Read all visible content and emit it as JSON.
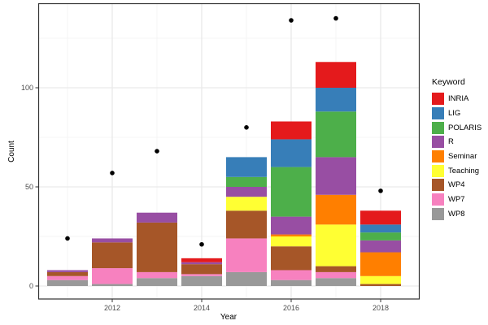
{
  "chart_data": {
    "type": "bar",
    "stacked": true,
    "title": "",
    "xlabel": "Year",
    "ylabel": "Count",
    "legend_title": "Keyword",
    "legend_position": "right",
    "grid": true,
    "theme": "bw",
    "x": [
      2011,
      2012,
      2013,
      2014,
      2015,
      2016,
      2017,
      2018
    ],
    "series": [
      {
        "name": "INRIA",
        "color": "#E41A1C",
        "values": [
          0,
          0,
          0,
          2,
          0,
          9,
          13,
          7
        ]
      },
      {
        "name": "LIG",
        "color": "#377EB8",
        "values": [
          0,
          0,
          0,
          0,
          10,
          14,
          12,
          4
        ]
      },
      {
        "name": "POLARIS",
        "color": "#4DAF4A",
        "values": [
          0,
          0,
          0,
          0,
          5,
          25,
          23,
          4
        ]
      },
      {
        "name": "R",
        "color": "#984EA3",
        "values": [
          1,
          2,
          5,
          1,
          5,
          9,
          19,
          6
        ]
      },
      {
        "name": "Seminar",
        "color": "#FF7F00",
        "values": [
          0,
          0,
          0,
          0,
          0,
          1,
          15,
          12
        ]
      },
      {
        "name": "Teaching",
        "color": "#FFFF33",
        "values": [
          0,
          0,
          0,
          0,
          7,
          5,
          21,
          4
        ]
      },
      {
        "name": "WP4",
        "color": "#A65628",
        "values": [
          2,
          13,
          25,
          5,
          14,
          12,
          3,
          1
        ]
      },
      {
        "name": "WP7",
        "color": "#F781BF",
        "values": [
          2,
          8,
          3,
          1,
          17,
          5,
          3,
          0
        ]
      },
      {
        "name": "WP8",
        "color": "#999999",
        "values": [
          3,
          1,
          4,
          5,
          7,
          3,
          4,
          0
        ]
      }
    ],
    "stack_order_bottom_to_top": [
      "WP8",
      "WP7",
      "WP4",
      "Teaching",
      "Seminar",
      "R",
      "POLARIS",
      "LIG",
      "INRIA"
    ],
    "bar_totals": [
      8,
      24,
      37,
      14,
      65,
      83,
      113,
      38
    ],
    "points": {
      "name": "total-marker-dots",
      "color": "#000000",
      "values": [
        24,
        57,
        68,
        21,
        80,
        134,
        135,
        48
      ]
    },
    "y_ticks": [
      0,
      50,
      100
    ],
    "y_minor_ticks": [
      25,
      75,
      125
    ],
    "x_ticks": [
      2012,
      2014,
      2016,
      2018
    ],
    "x_minor_ticks": [
      2011,
      2013,
      2015,
      2017
    ],
    "ylim": [
      0,
      142
    ],
    "colors": {
      "panel_border": "#333333",
      "major_grid": "#e9e9e9",
      "minor_grid": "#f4f4f4",
      "tick_label": "#4d4d4d",
      "axis_title": "#000000",
      "point": "#000000"
    }
  }
}
